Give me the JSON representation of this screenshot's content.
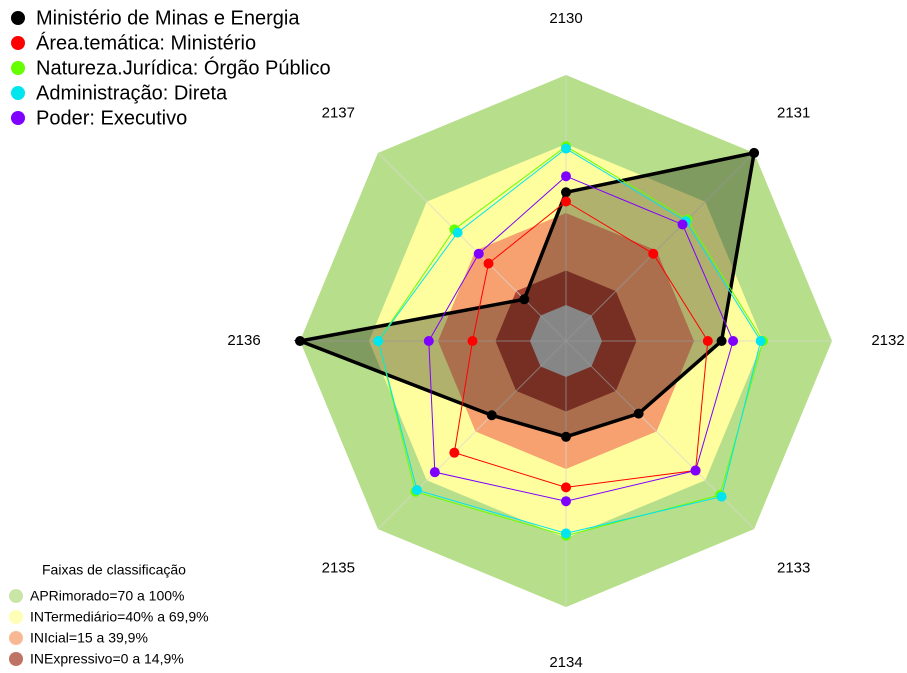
{
  "chart_data": {
    "type": "radar",
    "categories": [
      "2130",
      "2131",
      "2132",
      "2133",
      "2134",
      "2135",
      "2136",
      "2137"
    ],
    "rlim": [
      0,
      100
    ],
    "series": [
      {
        "name": "Ministério de Minas e Energia",
        "color": "#000000",
        "values": [
          49,
          100,
          52,
          29,
          26,
          30,
          100,
          10
        ]
      },
      {
        "name": "Área.temática: Ministério",
        "color": "#ff0000",
        "values": [
          45,
          38,
          46,
          64,
          48,
          53,
          25,
          32
        ]
      },
      {
        "name": "Natureza.Jurídica: Órgão Público",
        "color": "#66ff00",
        "values": [
          69,
          59,
          70,
          79,
          69,
          77,
          66,
          53
        ]
      },
      {
        "name": "Administração: Direta",
        "color": "#00e5ee",
        "values": [
          68,
          58,
          69,
          80,
          68,
          76,
          66,
          51
        ]
      },
      {
        "name": "Poder: Executivo",
        "color": "#7f00ff",
        "values": [
          56,
          56,
          57,
          64,
          54,
          65,
          44,
          38
        ]
      }
    ],
    "bands_title": "Faixas de classificação",
    "bands": [
      {
        "label": "APRimorado=70 a 100%",
        "range": [
          70,
          100
        ],
        "color": "#b7de8a"
      },
      {
        "label": "INTermediário=40% a 69,9%",
        "range": [
          40,
          70
        ],
        "color": "#fefe9e"
      },
      {
        "label": "INIcial=15 a 39,9%",
        "range": [
          15,
          40
        ],
        "color": "#f7a070"
      },
      {
        "label": "INExpressivo=0 a 14,9%",
        "range": [
          0,
          15
        ],
        "color": "#a94432"
      }
    ]
  }
}
